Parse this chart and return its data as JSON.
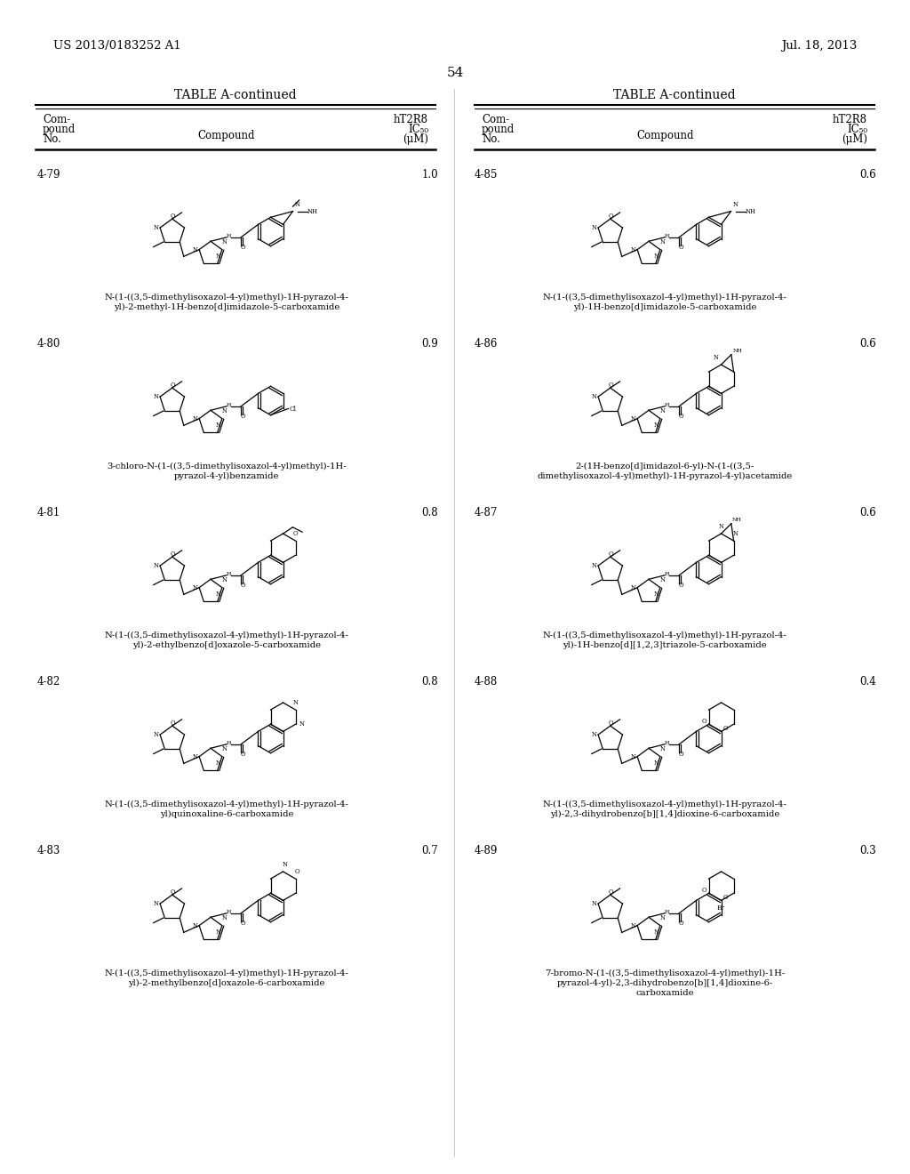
{
  "page_header_left": "US 2013/0183252 A1",
  "page_header_right": "Jul. 18, 2013",
  "page_number": "54",
  "table_title": "TABLE A-continued",
  "col_headers": [
    "Com-\npound\nNo.",
    "Compound",
    "hT2R8\nIC₅₀\n(μM)"
  ],
  "background_color": "#ffffff",
  "text_color": "#000000",
  "left_compounds": [
    {
      "id": "4-79",
      "ic50": "1.0",
      "name": "N-(1-((3,5-dimethylisoxazol-4-yl)methyl)-1H-pyrazol-4-\nyl)-2-methyl-1H-benzo[d]imidazole-5-carboxamide",
      "image_placeholder": "compound_4_79"
    },
    {
      "id": "4-80",
      "ic50": "0.9",
      "name": "3-chloro-N-(1-((3,5-dimethylisoxazol-4-yl)methyl)-1H-\npyrazol-4-yl)benzamide",
      "image_placeholder": "compound_4_80"
    },
    {
      "id": "4-81",
      "ic50": "0.8",
      "name": "N-(1-((3,5-dimethylisoxazol-4-yl)methyl)-1H-pyrazol-4-\nyl)-2-ethylbenzo[d]oxazole-5-carboxamide",
      "image_placeholder": "compound_4_81"
    },
    {
      "id": "4-82",
      "ic50": "0.8",
      "name": "N-(1-((3,5-dimethylisoxazol-4-yl)methyl)-1H-pyrazol-4-\nyl)quinoxaline-6-carboxamide",
      "image_placeholder": "compound_4_82"
    },
    {
      "id": "4-83",
      "ic50": "0.7",
      "name": "N-(1-((3,5-dimethylisoxazol-4-yl)methyl)-1H-pyrazol-4-\nyl)-2-methylbenzo[d]oxazole-6-carboxamide",
      "image_placeholder": "compound_4_83"
    }
  ],
  "right_compounds": [
    {
      "id": "4-85",
      "ic50": "0.6",
      "name": "N-(1-((3,5-dimethylisoxazol-4-yl)methyl)-1H-pyrazol-4-\nyl)-1H-benzo[d]imidazole-5-carboxamide",
      "image_placeholder": "compound_4_85"
    },
    {
      "id": "4-86",
      "ic50": "0.6",
      "name": "2-(1H-benzo[d]imidazol-6-yl)-N-(1-((3,5-\ndimethylisoxazol-4-yl)methyl)-1H-pyrazol-4-yl)acetamide",
      "image_placeholder": "compound_4_86"
    },
    {
      "id": "4-87",
      "ic50": "0.6",
      "name": "N-(1-((3,5-dimethylisoxazol-4-yl)methyl)-1H-pyrazol-4-\nyl)-1H-benzo[d][1,2,3]triazole-5-carboxamide",
      "image_placeholder": "compound_4_87"
    },
    {
      "id": "4-88",
      "ic50": "0.4",
      "name": "N-(1-((3,5-dimethylisoxazol-4-yl)methyl)-1H-pyrazol-4-\nyl)-2,3-dihydrobenzo[b][1,4]dioxine-6-carboxamide",
      "image_placeholder": "compound_4_88"
    },
    {
      "id": "4-89",
      "ic50": "0.3",
      "name": "7-bromo-N-(1-((3,5-dimethylisoxazol-4-yl)methyl)-1H-\npyrazol-4-yl)-2,3-dihydrobenzo[b][1,4]dioxine-6-\ncarboxamide",
      "image_placeholder": "compound_4_89"
    }
  ]
}
